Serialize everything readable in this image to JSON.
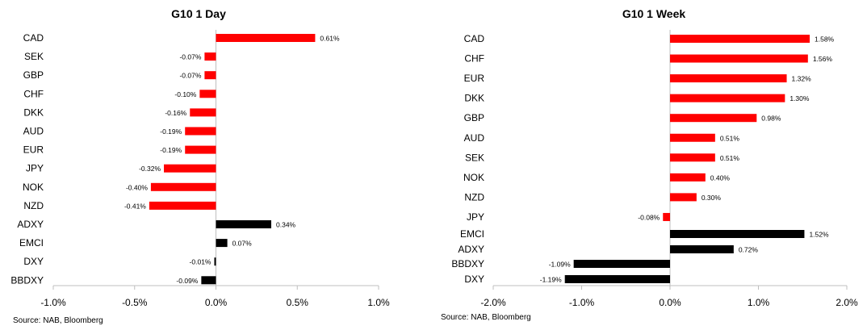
{
  "chart_data": [
    {
      "type": "bar",
      "orientation": "horizontal",
      "title": "G10 1 Day",
      "source": "Source: NAB, Bloomberg",
      "xlim": [
        -1.0,
        1.0
      ],
      "xticks": [
        -1.0,
        -0.5,
        0.0,
        0.5,
        1.0
      ],
      "xtick_labels": [
        "-1.0%",
        "-0.5%",
        "0.0%",
        "0.5%",
        "1.0%"
      ],
      "grid": false,
      "bar_colors": {
        "g10": "#ff0000",
        "index": "#000000"
      },
      "bars": [
        {
          "label": "CAD",
          "value": 0.61,
          "text": "0.61%",
          "group": "g10"
        },
        {
          "label": "SEK",
          "value": -0.07,
          "text": "-0.07%",
          "group": "g10"
        },
        {
          "label": "GBP",
          "value": -0.07,
          "text": "-0.07%",
          "group": "g10"
        },
        {
          "label": "CHF",
          "value": -0.1,
          "text": "-0.10%",
          "group": "g10"
        },
        {
          "label": "DKK",
          "value": -0.16,
          "text": "-0.16%",
          "group": "g10"
        },
        {
          "label": "AUD",
          "value": -0.19,
          "text": "-0.19%",
          "group": "g10"
        },
        {
          "label": "EUR",
          "value": -0.19,
          "text": "-0.19%",
          "group": "g10"
        },
        {
          "label": "JPY",
          "value": -0.32,
          "text": "-0.32%",
          "group": "g10"
        },
        {
          "label": "NOK",
          "value": -0.4,
          "text": "-0.40%",
          "group": "g10"
        },
        {
          "label": "NZD",
          "value": -0.41,
          "text": "-0.41%",
          "group": "g10"
        },
        {
          "label": "ADXY",
          "value": 0.34,
          "text": "0.34%",
          "group": "index"
        },
        {
          "label": "EMCI",
          "value": 0.07,
          "text": "0.07%",
          "group": "index"
        },
        {
          "label": "DXY",
          "value": -0.01,
          "text": "-0.01%",
          "group": "index"
        },
        {
          "label": "BBDXY",
          "value": -0.09,
          "text": "-0.09%",
          "group": "index"
        }
      ]
    },
    {
      "type": "bar",
      "orientation": "horizontal",
      "title": "G10 1 Week",
      "source": "Source: NAB, Bloomberg",
      "xlim": [
        -2.0,
        2.0
      ],
      "xticks": [
        -2.0,
        -1.0,
        0.0,
        1.0,
        2.0
      ],
      "xtick_labels": [
        "-2.0%",
        "-1.0%",
        "0.0%",
        "1.0%",
        "2.0%"
      ],
      "grid": false,
      "bar_colors": {
        "g10": "#ff0000",
        "index": "#000000"
      },
      "bars": [
        {
          "label": "CAD",
          "value": 1.58,
          "text": "1.58%",
          "group": "g10"
        },
        {
          "label": "CHF",
          "value": 1.56,
          "text": "1.56%",
          "group": "g10"
        },
        {
          "label": "EUR",
          "value": 1.32,
          "text": "1.32%",
          "group": "g10"
        },
        {
          "label": "DKK",
          "value": 1.3,
          "text": "1.30%",
          "group": "g10"
        },
        {
          "label": "GBP",
          "value": 0.98,
          "text": "0.98%",
          "group": "g10"
        },
        {
          "label": "AUD",
          "value": 0.51,
          "text": "0.51%",
          "group": "g10"
        },
        {
          "label": "SEK",
          "value": 0.51,
          "text": "0.51%",
          "group": "g10"
        },
        {
          "label": "NOK",
          "value": 0.4,
          "text": "0.40%",
          "group": "g10"
        },
        {
          "label": "NZD",
          "value": 0.3,
          "text": "0.30%",
          "group": "g10"
        },
        {
          "label": "JPY",
          "value": -0.08,
          "text": "-0.08%",
          "group": "g10"
        },
        {
          "label": "EMCI",
          "value": 1.52,
          "text": "1.52%",
          "group": "index"
        },
        {
          "label": "ADXY",
          "value": 0.72,
          "text": "0.72%",
          "group": "index"
        },
        {
          "label": "BBDXY",
          "value": -1.09,
          "text": "-1.09%",
          "group": "index"
        },
        {
          "label": "DXY",
          "value": -1.19,
          "text": "-1.19%",
          "group": "index"
        }
      ]
    }
  ]
}
